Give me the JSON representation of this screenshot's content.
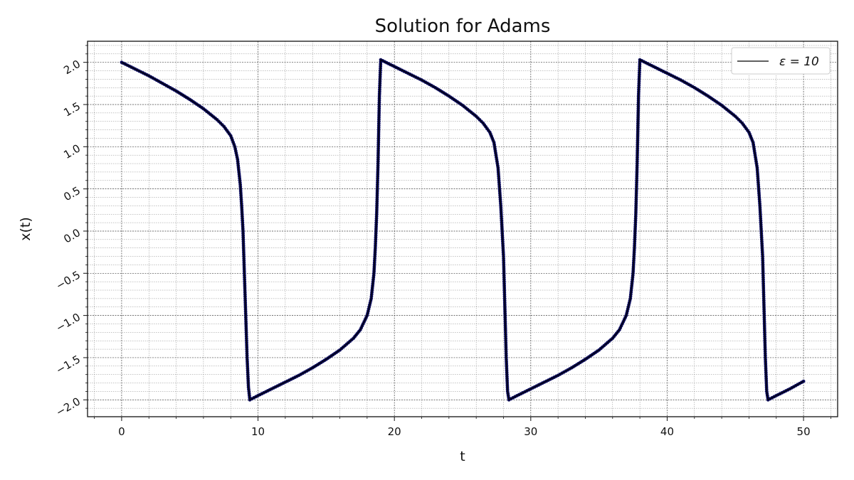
{
  "chart_data": {
    "type": "line",
    "title": "Solution for Adams",
    "xlabel": "t",
    "ylabel": "x(t)",
    "xlim": [
      -2.5,
      52.5
    ],
    "ylim": [
      -2.2,
      2.25
    ],
    "xticks": [
      "0",
      "10",
      "20",
      "30",
      "40",
      "50"
    ],
    "yticks": [
      "−2.0",
      "−1.5",
      "−1.0",
      "−0.5",
      "0.0",
      "0.5",
      "1.0",
      "1.5",
      "2.0"
    ],
    "grid": "on (major and minor)",
    "legend_position": "top-right",
    "series": [
      {
        "name": "ε = 10",
        "legend_label": "ε = 10",
        "color": "#000000",
        "marker_color": "#0a0a5a",
        "style": "solid line with small circular markers",
        "x": [
          0,
          1,
          2,
          3,
          4,
          5,
          6,
          7,
          7.5,
          8,
          8.3,
          8.5,
          8.7,
          8.8,
          8.9,
          9.0,
          9.1,
          9.2,
          9.3,
          9.4,
          10,
          11,
          12,
          13,
          14,
          15,
          16,
          17,
          17.5,
          18,
          18.3,
          18.5,
          18.6,
          18.7,
          18.8,
          18.9,
          19.0,
          20,
          21,
          22,
          23,
          24,
          25,
          26,
          26.5,
          27,
          27.3,
          27.6,
          27.8,
          28.0,
          28.1,
          28.2,
          28.3,
          28.4,
          29,
          30,
          31,
          32,
          33,
          34,
          35,
          36,
          36.5,
          37,
          37.3,
          37.5,
          37.6,
          37.7,
          37.8,
          37.9,
          38.0,
          39,
          40,
          41,
          42,
          43,
          44,
          45,
          45.5,
          46,
          46.3,
          46.6,
          46.8,
          47.0,
          47.1,
          47.2,
          47.3,
          47.4,
          48,
          49,
          50
        ],
        "y": [
          2.0,
          1.92,
          1.84,
          1.75,
          1.66,
          1.56,
          1.45,
          1.32,
          1.24,
          1.13,
          1.0,
          0.85,
          0.55,
          0.3,
          0.0,
          -0.5,
          -1.0,
          -1.5,
          -1.85,
          -2.0,
          -1.95,
          -1.87,
          -1.79,
          -1.71,
          -1.62,
          -1.52,
          -1.41,
          -1.27,
          -1.17,
          -1.0,
          -0.8,
          -0.5,
          -0.2,
          0.2,
          0.8,
          1.6,
          2.03,
          1.95,
          1.87,
          1.79,
          1.7,
          1.6,
          1.49,
          1.36,
          1.28,
          1.17,
          1.05,
          0.75,
          0.3,
          -0.3,
          -0.9,
          -1.5,
          -1.9,
          -2.0,
          -1.95,
          -1.87,
          -1.79,
          -1.71,
          -1.62,
          -1.52,
          -1.41,
          -1.27,
          -1.17,
          -1.0,
          -0.8,
          -0.5,
          -0.2,
          0.2,
          0.8,
          1.6,
          2.03,
          1.95,
          1.87,
          1.79,
          1.7,
          1.6,
          1.49,
          1.36,
          1.28,
          1.17,
          1.05,
          0.75,
          0.3,
          -0.3,
          -0.9,
          -1.5,
          -1.9,
          -2.0,
          -1.95,
          -1.87,
          -1.78
        ]
      }
    ]
  }
}
